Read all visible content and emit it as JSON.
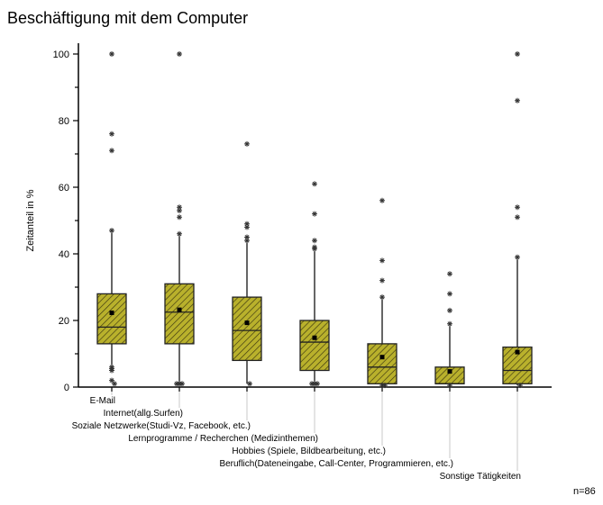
{
  "chart_data": {
    "type": "box",
    "title": "Beschäftigung mit dem Computer",
    "ylabel": "Zeitanteil in %",
    "xlabel": "",
    "ylim": [
      0,
      100
    ],
    "yticks": [
      0,
      20,
      40,
      60,
      80,
      100
    ],
    "note": "n=86",
    "colors": {
      "box": "#b9b12c",
      "hatch": "#3a3510"
    },
    "categories": [
      "E-Mail",
      "Internet(allg.Surfen)",
      "Soziale Netzwerke(Studi-Vz, Facebook, etc.)",
      "Lernprogramme / Recherchen (Medizinthemen)",
      "Hobbies (Spiele, Bildbearbeitung, etc.)",
      "Beruflich(Dateneingabe, Call-Center, Programmieren, etc.)",
      "Sonstige Tätigkeiten"
    ],
    "boxes": [
      {
        "q1": 13,
        "median": 18,
        "q3": 28,
        "mean": 22.3,
        "whisker_low": 6,
        "whisker_high": 47,
        "outliers": [
          100,
          76,
          71,
          47,
          6,
          5.5,
          5,
          2,
          1
        ]
      },
      {
        "q1": 13,
        "median": 22.5,
        "q3": 31,
        "mean": 23.2,
        "whisker_low": 1,
        "whisker_high": 46,
        "outliers": [
          100,
          54,
          53,
          51,
          46,
          1,
          1,
          1
        ]
      },
      {
        "q1": 8,
        "median": 17,
        "q3": 27,
        "mean": 19.3,
        "whisker_low": 1,
        "whisker_high": 44,
        "outliers": [
          73,
          49,
          48,
          45,
          44,
          1
        ]
      },
      {
        "q1": 5,
        "median": 13.5,
        "q3": 20,
        "mean": 14.8,
        "whisker_low": 1,
        "whisker_high": 41,
        "outliers": [
          61,
          52,
          44,
          42,
          41.5,
          1,
          1,
          1
        ]
      },
      {
        "q1": 1,
        "median": 6,
        "q3": 13,
        "mean": 9,
        "whisker_low": 0.5,
        "whisker_high": 27,
        "outliers": [
          56,
          38,
          32,
          27,
          0.5,
          0.5
        ]
      },
      {
        "q1": 1,
        "median": 1,
        "q3": 6,
        "mean": 4.7,
        "whisker_low": 0.5,
        "whisker_high": 19,
        "outliers": [
          34,
          28,
          23,
          19,
          0.5
        ]
      },
      {
        "q1": 1,
        "median": 5,
        "q3": 12,
        "mean": 10.5,
        "whisker_low": 0.5,
        "whisker_high": 39,
        "outliers": [
          100,
          86,
          54,
          51,
          39,
          0.5
        ]
      }
    ]
  }
}
